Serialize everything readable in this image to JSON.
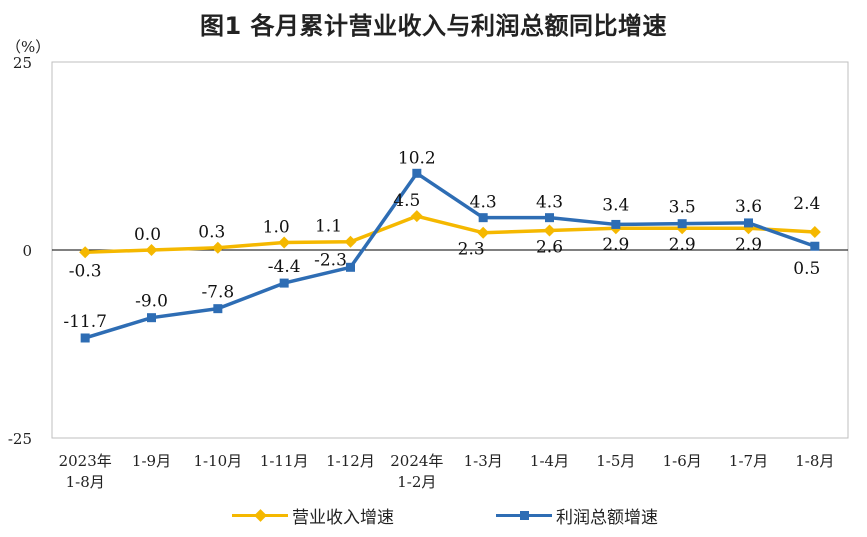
{
  "chart_data": {
    "type": "line",
    "title": "图1  各月累计营业收入与利润总额同比增速",
    "unit_label": "（%）",
    "categories": [
      [
        "2023年",
        "1-8月"
      ],
      [
        "1-9月"
      ],
      [
        "1-10月"
      ],
      [
        "1-11月"
      ],
      [
        "1-12月"
      ],
      [
        "2024年",
        "1-2月"
      ],
      [
        "1-3月"
      ],
      [
        "1-4月"
      ],
      [
        "1-5月"
      ],
      [
        "1-6月"
      ],
      [
        "1-7月"
      ],
      [
        "1-8月"
      ]
    ],
    "ylim": [
      -25,
      25
    ],
    "yticks": [
      "25",
      "0",
      "-25"
    ],
    "series": [
      {
        "name": "营业收入增速",
        "color": "#F5B800",
        "marker": "diamond",
        "values": [
          -0.3,
          0.0,
          0.3,
          1.0,
          1.1,
          4.5,
          2.3,
          2.6,
          2.9,
          2.9,
          2.9,
          2.4
        ],
        "labels": [
          "-0.3",
          "0.0",
          "0.3",
          "1.0",
          "1.1",
          "4.5",
          "2.3",
          "2.6",
          "2.9",
          "2.9",
          "2.9",
          "2.4"
        ]
      },
      {
        "name": "利润总额增速",
        "color": "#2E6DB4",
        "marker": "square",
        "values": [
          -11.7,
          -9.0,
          -7.8,
          -4.4,
          -2.3,
          10.2,
          4.3,
          4.3,
          3.4,
          3.5,
          3.6,
          0.5
        ],
        "labels": [
          "-11.7",
          "-9.0",
          "-7.8",
          "-4.4",
          "-2.3",
          "10.2",
          "4.3",
          "4.3",
          "3.4",
          "3.5",
          "3.6",
          "0.5"
        ]
      }
    ],
    "legend_position": "bottom",
    "grid": false
  }
}
